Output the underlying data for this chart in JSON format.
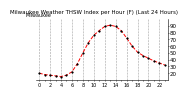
{
  "title": "Milwaukee Weather THSW Index per Hour (F) (Last 24 Hours)",
  "hours": [
    0,
    1,
    2,
    3,
    4,
    5,
    6,
    7,
    8,
    9,
    10,
    11,
    12,
    13,
    14,
    15,
    16,
    17,
    18,
    19,
    20,
    21,
    22,
    23
  ],
  "values": [
    20,
    18,
    17,
    16,
    15,
    17,
    22,
    34,
    50,
    65,
    76,
    83,
    89,
    91,
    89,
    83,
    72,
    60,
    51,
    46,
    42,
    38,
    35,
    32
  ],
  "line_color": "#ff0000",
  "marker_color": "#000000",
  "bg_color": "#ffffff",
  "plot_bg": "#ffffff",
  "grid_color": "#888888",
  "ylim": [
    10,
    100
  ],
  "yticks": [
    20,
    30,
    40,
    50,
    60,
    70,
    80,
    90
  ],
  "ylabel_fontsize": 4,
  "xlabel_fontsize": 3.5,
  "title_fontsize": 4,
  "legend_text": "Milwaukee",
  "legend_fontsize": 3.5
}
